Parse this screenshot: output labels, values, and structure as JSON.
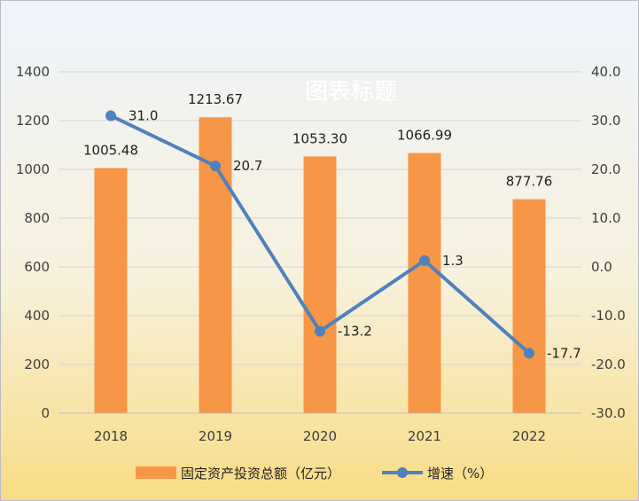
{
  "chart_data": {
    "type": "bar+line",
    "title": "图表标题",
    "categories": [
      "2018",
      "2019",
      "2020",
      "2021",
      "2022"
    ],
    "series": [
      {
        "name": "固定资产投资总额（亿元）",
        "type": "bar",
        "axis": "left",
        "values": [
          1005.48,
          1213.67,
          1053.3,
          1066.99,
          877.76
        ],
        "labels": [
          "1005.48",
          "1213.67",
          "1053.30",
          "1066.99",
          "877.76"
        ],
        "color": "#f79646"
      },
      {
        "name": "增速（%）",
        "type": "line",
        "axis": "right",
        "values": [
          31.0,
          20.7,
          -13.2,
          1.3,
          -17.7
        ],
        "labels": [
          "31.0",
          "20.7",
          "-13.2",
          "1.3",
          "-17.7"
        ],
        "color": "#4f81bd"
      }
    ],
    "y_left": {
      "min": 0,
      "max": 1400,
      "ticks": [
        "0",
        "200",
        "400",
        "600",
        "800",
        "1000",
        "1200",
        "1400"
      ]
    },
    "y_right": {
      "min": -30,
      "max": 40,
      "ticks": [
        "-30.0",
        "-20.0",
        "-10.0",
        "0.0",
        "10.0",
        "20.0",
        "30.0",
        "40.0"
      ]
    },
    "grid": true,
    "legend_position": "bottom"
  }
}
